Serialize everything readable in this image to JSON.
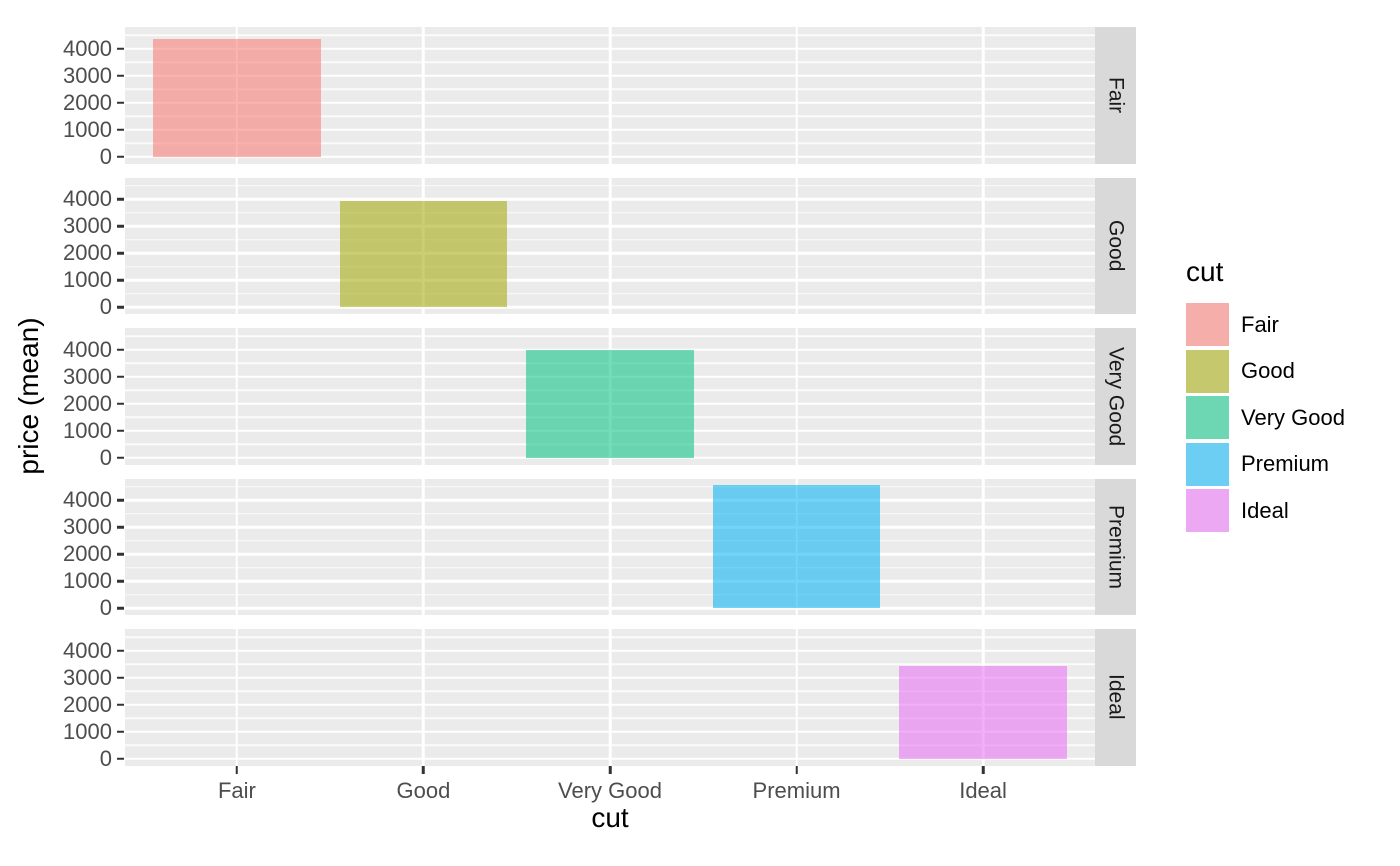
{
  "chart_data": {
    "type": "bar",
    "title": "",
    "xlabel": "cut",
    "ylabel": "price (mean)",
    "legend_title": "cut",
    "legend_position": "right",
    "categories": [
      "Fair",
      "Good",
      "Very Good",
      "Premium",
      "Ideal"
    ],
    "values": [
      4358.76,
      3928.86,
      3981.76,
      4584.26,
      3457.54
    ],
    "colors": [
      "#F8766D",
      "#A3A500",
      "#00BF7D",
      "#00B0F6",
      "#E76BF3"
    ],
    "fill_opacity": 0.55,
    "facet_labels": [
      "Fair",
      "Good",
      "Very Good",
      "Premium",
      "Ideal"
    ],
    "facet_variable": "cut",
    "facet_arrangement": "rows",
    "y_ticks": [
      0,
      1000,
      2000,
      3000,
      4000
    ],
    "y_minor_gridlines": [
      500,
      1500,
      2500,
      3500,
      4500
    ],
    "ylim": [
      -241.4,
      4813.5
    ],
    "grid": "on",
    "bar_band_fraction": 0.9,
    "theme": {
      "panel_bg": "#EBEBEB",
      "strip_bg": "#D9D9D9",
      "grid_color": "#FFFFFF",
      "tick_mark_color": "#333333",
      "tick_label_color": "#4D4D4D",
      "text_color": "#000000",
      "strip_text_color": "#1A1A1A"
    }
  }
}
